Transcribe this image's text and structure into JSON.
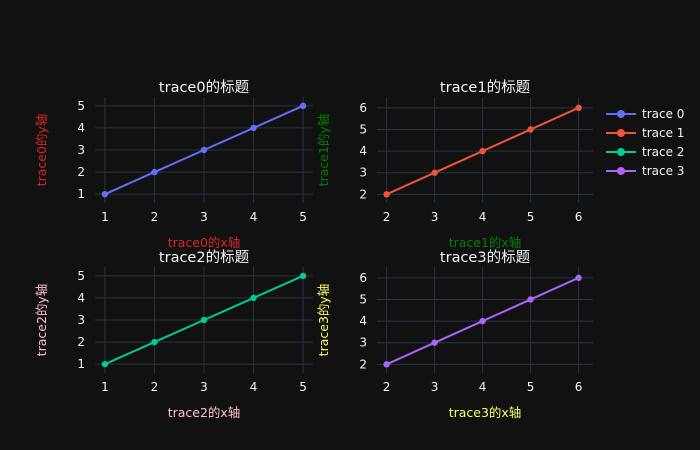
{
  "chart_data": [
    {
      "type": "line",
      "name": "trace 0",
      "title": "trace0的标题",
      "xlabel": "trace0的x轴",
      "ylabel": "trace0的y轴",
      "axis_label_color": "#d62728",
      "line_color": "#636efa",
      "x": [
        1,
        2,
        3,
        4,
        5
      ],
      "y": [
        1,
        2,
        3,
        4,
        5
      ],
      "xlim": [
        0.8,
        5.2
      ],
      "ylim": [
        0.6,
        5.4
      ],
      "xticks": [
        1,
        2,
        3,
        4,
        5
      ],
      "yticks": [
        1,
        2,
        3,
        4,
        5
      ],
      "grid": true
    },
    {
      "type": "line",
      "name": "trace 1",
      "title": "trace1的标题",
      "xlabel": "trace1的x轴",
      "ylabel": "trace1的y轴",
      "axis_label_color": "#008000",
      "line_color": "#ef553b",
      "x": [
        2,
        3,
        4,
        5,
        6
      ],
      "y": [
        2,
        3,
        4,
        5,
        6
      ],
      "xlim": [
        1.8,
        6.3
      ],
      "ylim": [
        1.6,
        6.5
      ],
      "xticks": [
        2,
        3,
        4,
        5,
        6
      ],
      "yticks": [
        2,
        3,
        4,
        5,
        6
      ],
      "grid": true
    },
    {
      "type": "line",
      "name": "trace 2",
      "title": "trace2的标题",
      "xlabel": "trace2的x轴",
      "ylabel": "trace2的y轴",
      "axis_label_color": "#ffc0cb",
      "line_color": "#00cc96",
      "x": [
        1,
        2,
        3,
        4,
        5
      ],
      "y": [
        1,
        2,
        3,
        4,
        5
      ],
      "xlim": [
        0.8,
        5.2
      ],
      "ylim": [
        0.6,
        5.4
      ],
      "xticks": [
        1,
        2,
        3,
        4,
        5
      ],
      "yticks": [
        1,
        2,
        3,
        4,
        5
      ],
      "grid": true
    },
    {
      "type": "line",
      "name": "trace 3",
      "title": "trace3的标题",
      "xlabel": "trace3的x轴",
      "ylabel": "trace3的y轴",
      "axis_label_color": "#ffff66",
      "line_color": "#ab63fa",
      "x": [
        2,
        3,
        4,
        5,
        6
      ],
      "y": [
        2,
        3,
        4,
        5,
        6
      ],
      "xlim": [
        1.8,
        6.3
      ],
      "ylim": [
        1.6,
        6.5
      ],
      "xticks": [
        2,
        3,
        4,
        5,
        6
      ],
      "yticks": [
        2,
        3,
        4,
        5,
        6
      ],
      "grid": true
    }
  ],
  "legend": {
    "placement": "right",
    "items": [
      {
        "label": "trace 0",
        "color": "#636efa"
      },
      {
        "label": "trace 1",
        "color": "#ef553b"
      },
      {
        "label": "trace 2",
        "color": "#00cc96"
      },
      {
        "label": "trace 3",
        "color": "#ab63fa"
      }
    ]
  },
  "theme": {
    "background": "#111111",
    "grid_color": "#283442",
    "text_color": "#f2f5fa"
  }
}
